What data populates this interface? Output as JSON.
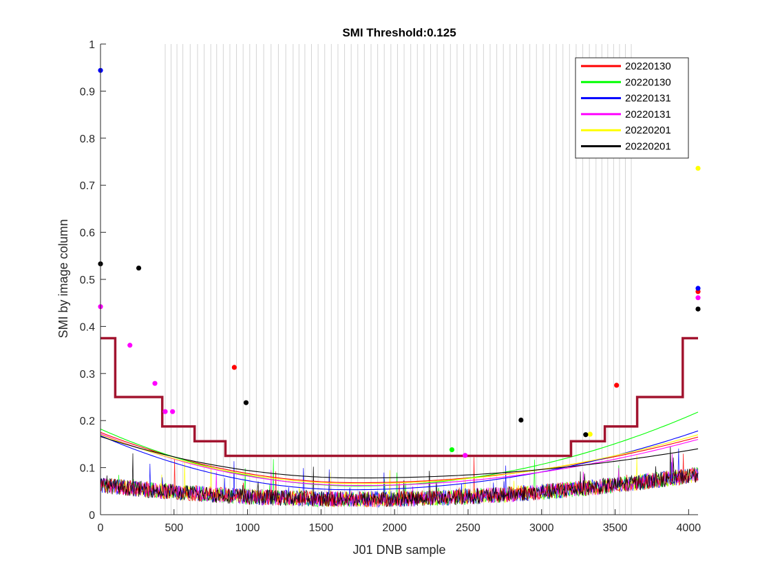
{
  "chart_data": {
    "type": "line",
    "title": "SMI Threshold:0.125",
    "xlabel": "J01 DNB sample",
    "ylabel": "SMI by image column",
    "xlim": [
      0,
      4064
    ],
    "ylim": [
      0,
      1
    ],
    "xticks": [
      0,
      500,
      1000,
      1500,
      2000,
      2500,
      3000,
      3500,
      4000
    ],
    "yticks": [
      0,
      0.1,
      0.2,
      0.3,
      0.4,
      0.5,
      0.6,
      0.7,
      0.8,
      0.9,
      1
    ],
    "grid": false,
    "legend_position": "top-right",
    "vertical_reference_lines_x": [
      440,
      480,
      520,
      560,
      610,
      660,
      705,
      750,
      790,
      835,
      880,
      925,
      970,
      1015,
      1060,
      1110,
      1160,
      1210,
      1260,
      1310,
      1350,
      1390,
      1435,
      1480,
      1525,
      1570,
      1615,
      1660,
      1705,
      1750,
      1795,
      1840,
      1885,
      1930,
      1975,
      2020,
      2065,
      2110,
      2155,
      2200,
      2245,
      2290,
      2335,
      2380,
      2425,
      2470,
      2515,
      2560,
      2605,
      2650,
      2695,
      2740,
      2785,
      2830,
      2875,
      2920,
      2965,
      3010,
      3055,
      3100,
      3145,
      3190,
      3235,
      3280,
      3325,
      3370,
      3410,
      3450,
      3490,
      3530,
      3570,
      3610
    ],
    "threshold_step": {
      "color": "#a2142f",
      "points": [
        [
          0,
          0.375
        ],
        [
          100,
          0.375
        ],
        [
          100,
          0.25
        ],
        [
          420,
          0.25
        ],
        [
          420,
          0.1875
        ],
        [
          640,
          0.1875
        ],
        [
          640,
          0.156
        ],
        [
          850,
          0.156
        ],
        [
          850,
          0.125
        ],
        [
          3200,
          0.125
        ],
        [
          3200,
          0.156
        ],
        [
          3430,
          0.156
        ],
        [
          3430,
          0.1875
        ],
        [
          3650,
          0.1875
        ],
        [
          3650,
          0.25
        ],
        [
          3960,
          0.25
        ],
        [
          3960,
          0.375
        ],
        [
          4064,
          0.375
        ]
      ]
    },
    "series": [
      {
        "name": "20220130",
        "color": "#ff0000",
        "fit": {
          "left": 0.175,
          "min": 0.068,
          "min_x": 1750,
          "right": 0.165
        },
        "points": [
          [
            910,
            0.313
          ],
          [
            3510,
            0.275
          ],
          [
            4064,
            0.474
          ]
        ]
      },
      {
        "name": "20220130",
        "color": "#00ff00",
        "fit": {
          "left": 0.182,
          "min": 0.061,
          "min_x": 1750,
          "right": 0.218
        },
        "points": [
          [
            2390,
            0.138
          ]
        ]
      },
      {
        "name": "20220131",
        "color": "#0000ff",
        "fit": {
          "left": 0.168,
          "min": 0.053,
          "min_x": 1700,
          "right": 0.178
        },
        "points": [
          [
            0,
            0.944
          ],
          [
            4064,
            0.481
          ]
        ]
      },
      {
        "name": "20220131",
        "color": "#ff00ff",
        "fit": {
          "left": 0.172,
          "min": 0.062,
          "min_x": 1750,
          "right": 0.16
        },
        "points": [
          [
            0,
            0.442
          ],
          [
            200,
            0.36
          ],
          [
            370,
            0.279
          ],
          [
            440,
            0.219
          ],
          [
            490,
            0.219
          ],
          [
            2480,
            0.126
          ],
          [
            4064,
            0.461
          ]
        ]
      },
      {
        "name": "20220201",
        "color": "#ffff00",
        "fit": {
          "left": 0.17,
          "min": 0.066,
          "min_x": 1750,
          "right": 0.17
        },
        "points": [
          [
            3330,
            0.171
          ],
          [
            4064,
            0.736
          ]
        ]
      },
      {
        "name": "20220201",
        "color": "#000000",
        "fit": {
          "left": 0.166,
          "min": 0.078,
          "min_x": 1750,
          "right": 0.14
        },
        "points": [
          [
            0,
            0.533
          ],
          [
            260,
            0.524
          ],
          [
            990,
            0.238
          ],
          [
            2860,
            0.201
          ],
          [
            3300,
            0.17
          ],
          [
            4064,
            0.437
          ]
        ]
      }
    ]
  }
}
